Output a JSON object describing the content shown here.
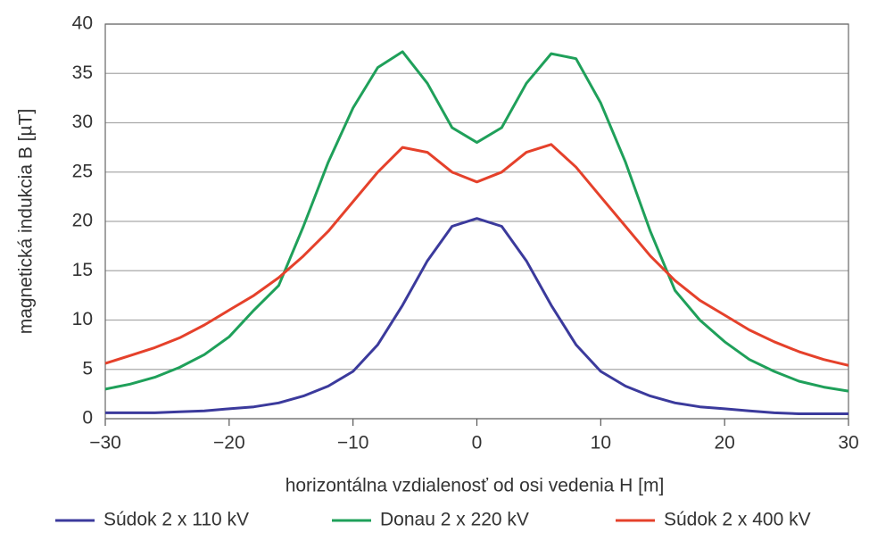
{
  "chart_data": {
    "type": "line",
    "xlabel": "horizontálna vzdialenosť od osi vedenia H [m]",
    "ylabel": "magnetická indukcia B [µT]",
    "x": [
      -30,
      -28,
      -26,
      -24,
      -22,
      -20,
      -18,
      -16,
      -14,
      -12,
      -10,
      -8,
      -6,
      -4,
      -2,
      0,
      2,
      4,
      6,
      8,
      10,
      12,
      14,
      16,
      18,
      20,
      22,
      24,
      26,
      28,
      30
    ],
    "series": [
      {
        "name": "Súdok 2 x 110 kV",
        "color": "#3b3a9c",
        "values": [
          0.6,
          0.6,
          0.6,
          0.7,
          0.8,
          1.0,
          1.2,
          1.6,
          2.3,
          3.3,
          4.8,
          7.5,
          11.5,
          16,
          19.5,
          20.3,
          19.5,
          16,
          11.5,
          7.5,
          4.8,
          3.3,
          2.3,
          1.6,
          1.2,
          1.0,
          0.8,
          0.6,
          0.5,
          0.5,
          0.5
        ]
      },
      {
        "name": "Donau 2 x 220 kV",
        "color": "#1fa05a",
        "values": [
          3,
          3.5,
          4.2,
          5.2,
          6.5,
          8.3,
          11,
          13.5,
          19.5,
          26,
          31.5,
          35.6,
          37.2,
          34,
          29.5,
          28,
          29.5,
          34,
          37,
          36.5,
          32,
          26,
          19,
          13,
          10,
          7.8,
          6,
          4.8,
          3.8,
          3.2,
          2.8
        ]
      },
      {
        "name": "Súdok 2 x 400 kV",
        "color": "#e5412b",
        "values": [
          5.6,
          6.4,
          7.2,
          8.2,
          9.5,
          11,
          12.5,
          14.3,
          16.5,
          19,
          22,
          25,
          27.5,
          27,
          25,
          24,
          25,
          27,
          27.8,
          25.5,
          22.5,
          19.5,
          16.5,
          14,
          12,
          10.5,
          9,
          7.8,
          6.8,
          6,
          5.4
        ]
      }
    ],
    "xlim": [
      -30,
      30
    ],
    "xticks": [
      {
        "value": -30,
        "label": "−30"
      },
      {
        "value": -20,
        "label": "−20"
      },
      {
        "value": -10,
        "label": "−10"
      },
      0,
      10,
      20,
      30
    ],
    "ylim": [
      0,
      40
    ],
    "yticks": [
      0,
      5,
      10,
      15,
      20,
      25,
      30,
      35,
      40
    ],
    "grid": true
  }
}
